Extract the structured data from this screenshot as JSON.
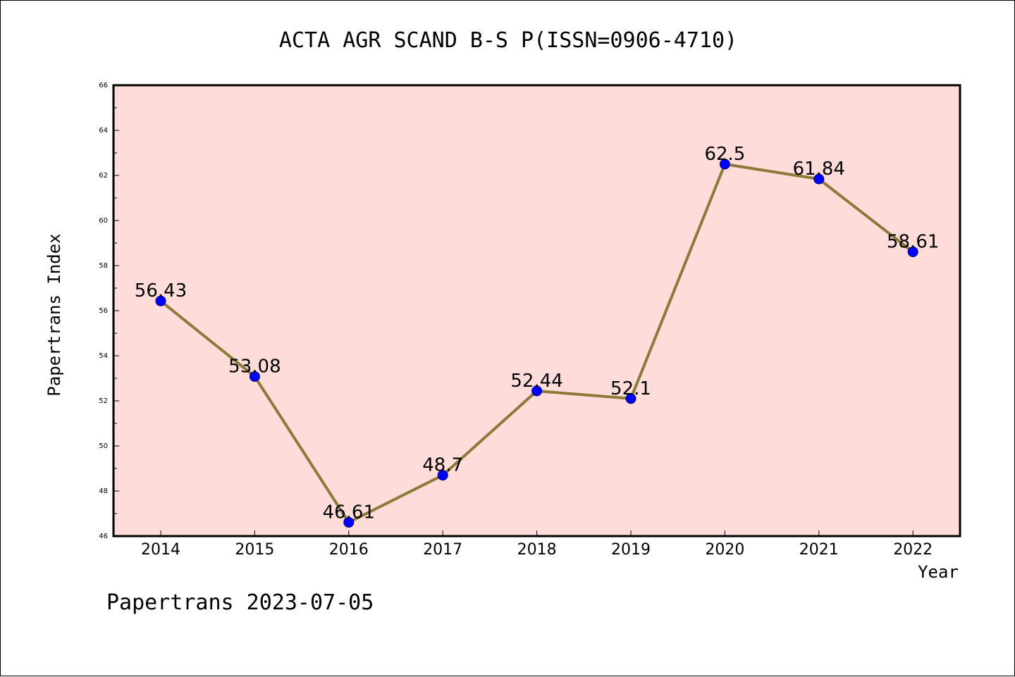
{
  "chart_data": {
    "type": "line",
    "title": "ACTA AGR SCAND B-S P(ISSN=0906-4710)",
    "xlabel": "Year",
    "ylabel": "Papertrans Index",
    "categories": [
      "2014",
      "2015",
      "2016",
      "2017",
      "2018",
      "2019",
      "2020",
      "2021",
      "2022"
    ],
    "values": [
      56.43,
      53.08,
      46.61,
      48.7,
      52.44,
      52.1,
      62.5,
      61.84,
      58.61
    ],
    "data_labels": [
      "56.43",
      "53.08",
      "46.61",
      "48.7",
      "52.44",
      "52.1",
      "62.5",
      "61.84",
      "58.61"
    ],
    "ylim": [
      46,
      66
    ],
    "yticks": [
      "46",
      "48",
      "50",
      "52",
      "54",
      "56",
      "58",
      "60",
      "62",
      "64",
      "66"
    ],
    "grid": false,
    "legend": "none"
  },
  "footer": "Papertrans 2023-07-05",
  "colors": {
    "plot_background": "#fddcd9",
    "line": "#8b7a3a",
    "marker": "#0000ff",
    "marker_edge": "#000080",
    "axes": "#000000"
  }
}
